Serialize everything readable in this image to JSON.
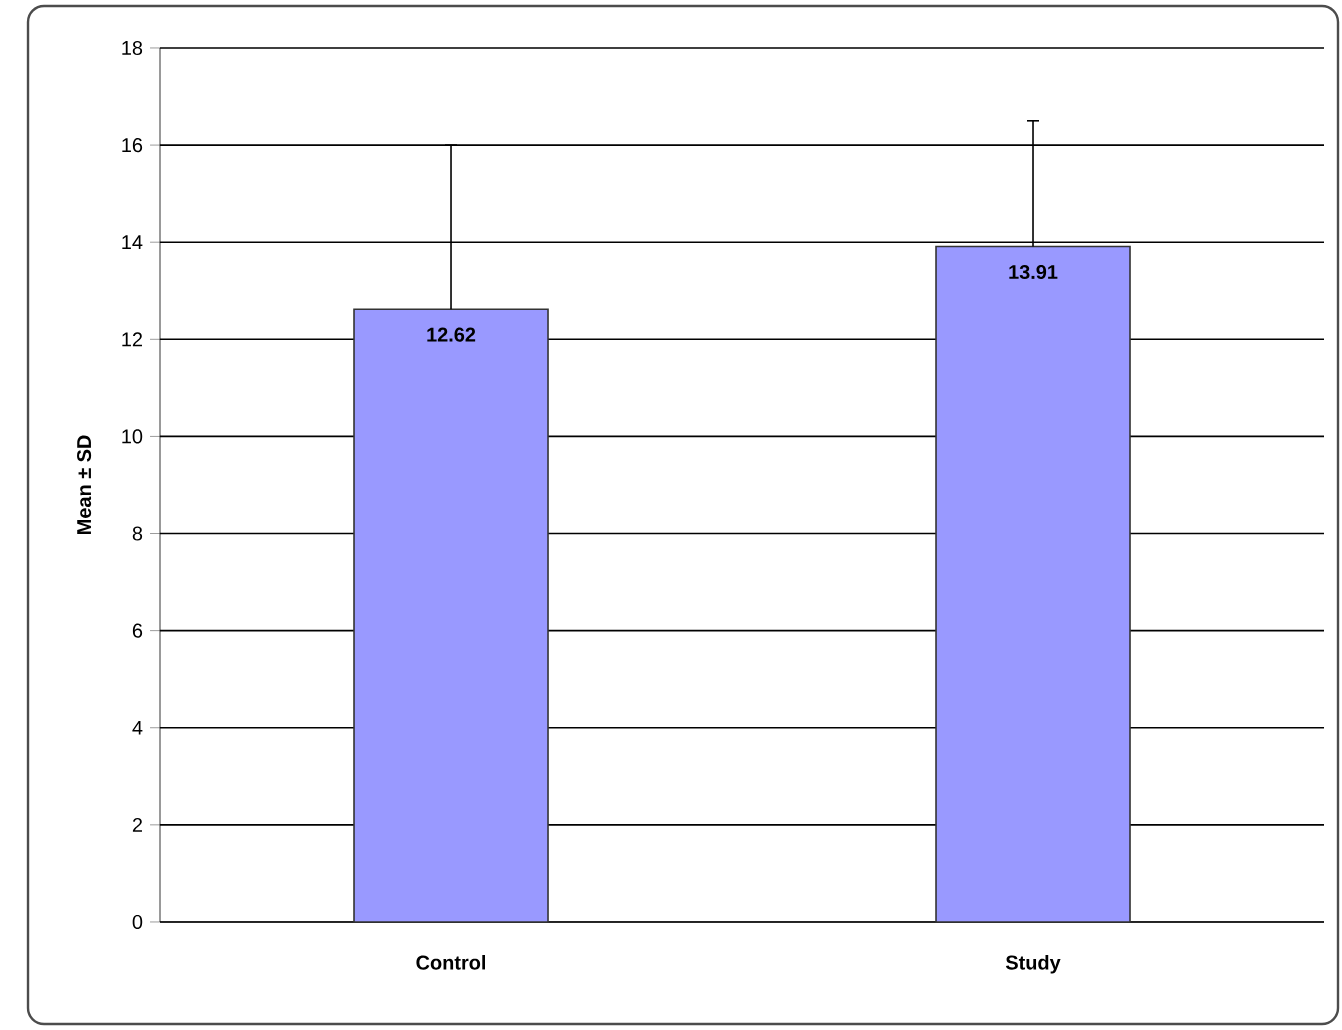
{
  "chart_data": {
    "type": "bar",
    "ylabel": "Mean ± SD",
    "categories": [
      "Control",
      "Study"
    ],
    "values": [
      12.62,
      13.91
    ],
    "errors": [
      [
        12.62,
        16.0
      ],
      [
        13.91,
        16.5
      ]
    ],
    "color": "#9999ff",
    "ylim": [
      0,
      18
    ],
    "yticks": [
      0,
      2,
      4,
      6,
      8,
      10,
      12,
      14,
      16,
      18
    ],
    "grid": "y",
    "data_labels": true
  }
}
